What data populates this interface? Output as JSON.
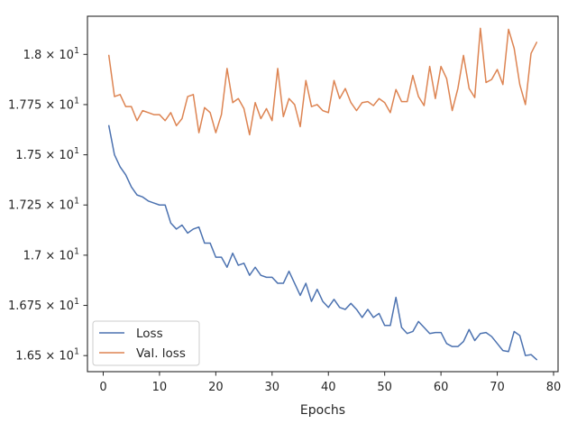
{
  "chart_data": {
    "type": "line",
    "title": "",
    "xlabel": "Epochs",
    "ylabel": "",
    "xlim": [
      -2.8,
      80.8
    ],
    "ylim": [
      16.42,
      18.19
    ],
    "x_ticks": [
      0,
      10,
      20,
      30,
      40,
      50,
      60,
      70,
      80
    ],
    "x_tick_labels": [
      "0",
      "10",
      "20",
      "30",
      "40",
      "50",
      "60",
      "70",
      "80"
    ],
    "y_ticks": [
      16.5,
      16.75,
      17.0,
      17.25,
      17.5,
      17.75,
      18.0
    ],
    "y_tick_labels": [
      {
        "mantissa": "1.65",
        "base": "10",
        "exp": "1"
      },
      {
        "mantissa": "1.675",
        "base": "10",
        "exp": "1"
      },
      {
        "mantissa": "1.7",
        "base": "10",
        "exp": "1"
      },
      {
        "mantissa": "1.725",
        "base": "10",
        "exp": "1"
      },
      {
        "mantissa": "1.75",
        "base": "10",
        "exp": "1"
      },
      {
        "mantissa": "1.775",
        "base": "10",
        "exp": "1"
      },
      {
        "mantissa": "1.8",
        "base": "10",
        "exp": "1"
      }
    ],
    "legend_position": "lower-left",
    "grid": false,
    "x": [
      1,
      2,
      3,
      4,
      5,
      6,
      7,
      8,
      9,
      10,
      11,
      12,
      13,
      14,
      15,
      16,
      17,
      18,
      19,
      20,
      21,
      22,
      23,
      24,
      25,
      26,
      27,
      28,
      29,
      30,
      31,
      32,
      33,
      34,
      35,
      36,
      37,
      38,
      39,
      40,
      41,
      42,
      43,
      44,
      45,
      46,
      47,
      48,
      49,
      50,
      51,
      52,
      53,
      54,
      55,
      56,
      57,
      58,
      59,
      60,
      61,
      62,
      63,
      64,
      65,
      66,
      67,
      68,
      69,
      70,
      71,
      72,
      73,
      74,
      75,
      76,
      77
    ],
    "series": [
      {
        "name": "Loss",
        "color": "#4c72b0",
        "values": [
          17.645,
          17.5,
          17.44,
          17.4,
          17.34,
          17.3,
          17.29,
          17.27,
          17.26,
          17.25,
          17.25,
          17.16,
          17.13,
          17.15,
          17.11,
          17.13,
          17.14,
          17.06,
          17.06,
          16.99,
          16.99,
          16.94,
          17.01,
          16.95,
          16.96,
          16.9,
          16.94,
          16.9,
          16.89,
          16.89,
          16.86,
          16.86,
          16.92,
          16.86,
          16.8,
          16.86,
          16.77,
          16.83,
          16.77,
          16.74,
          16.78,
          16.74,
          16.73,
          16.76,
          16.73,
          16.69,
          16.73,
          16.69,
          16.71,
          16.65,
          16.65,
          16.79,
          16.64,
          16.61,
          16.62,
          16.67,
          16.64,
          16.61,
          16.615,
          16.615,
          16.56,
          16.545,
          16.545,
          16.57,
          16.63,
          16.575,
          16.61,
          16.615,
          16.595,
          16.56,
          16.525,
          16.52,
          16.62,
          16.6,
          16.5,
          16.505,
          16.48
        ]
      },
      {
        "name": "Val. loss",
        "color": "#dd8452",
        "values": [
          17.995,
          17.79,
          17.8,
          17.74,
          17.74,
          17.67,
          17.72,
          17.71,
          17.7,
          17.7,
          17.67,
          17.71,
          17.645,
          17.68,
          17.79,
          17.8,
          17.61,
          17.735,
          17.71,
          17.61,
          17.7,
          17.93,
          17.76,
          17.78,
          17.73,
          17.6,
          17.76,
          17.68,
          17.73,
          17.67,
          17.93,
          17.69,
          17.78,
          17.75,
          17.64,
          17.87,
          17.74,
          17.75,
          17.72,
          17.71,
          17.87,
          17.78,
          17.83,
          17.76,
          17.72,
          17.76,
          17.765,
          17.745,
          17.78,
          17.76,
          17.71,
          17.825,
          17.765,
          17.765,
          17.895,
          17.79,
          17.745,
          17.94,
          17.78,
          17.94,
          17.88,
          17.72,
          17.83,
          17.995,
          17.83,
          17.785,
          18.13,
          17.86,
          17.875,
          17.925,
          17.85,
          18.125,
          18.03,
          17.85,
          17.75,
          18.005,
          18.06
        ]
      }
    ]
  }
}
